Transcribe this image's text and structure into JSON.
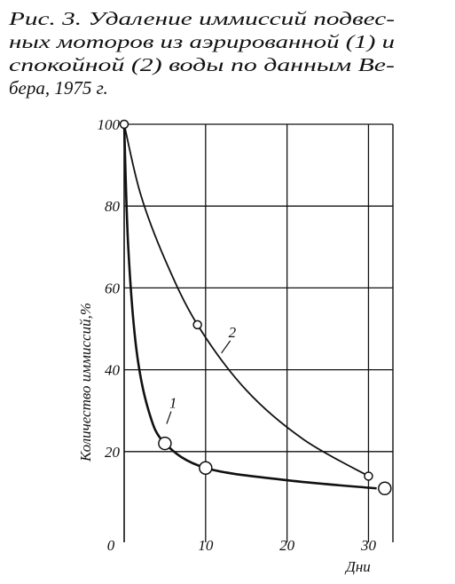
{
  "chart_data": {
    "type": "line",
    "title": [
      "Рис. 3. Удаление иммиссий подвес-",
      "ных моторов из аэрированной (1) и",
      "спокойной (2) воды по данным Ве-",
      "бера, 1975 г."
    ],
    "x_label": "Дни",
    "y_label": "Количество иммиссий,%",
    "xlim": [
      0,
      33
    ],
    "ylim": [
      0,
      100
    ],
    "xticks": [
      0,
      10,
      20,
      30
    ],
    "yticks": [
      20,
      40,
      60,
      80,
      100
    ],
    "grid": true,
    "series": [
      {
        "name": "1",
        "color": "#111111",
        "x": [
          0,
          0.5,
          1.5,
          3,
          5,
          10,
          20,
          31
        ],
        "values": [
          100,
          70,
          45,
          30,
          22,
          16,
          13,
          11
        ],
        "marker_x": [
          5,
          10,
          32
        ],
        "marker_values": [
          22,
          16,
          11
        ]
      },
      {
        "name": "2",
        "color": "#111111",
        "x": [
          0,
          2,
          5,
          9,
          15,
          22,
          30
        ],
        "values": [
          100,
          83,
          67,
          51,
          35,
          23,
          14
        ],
        "marker_x": [
          0,
          9,
          30
        ],
        "marker_values": [
          100,
          51,
          14
        ]
      }
    ]
  }
}
